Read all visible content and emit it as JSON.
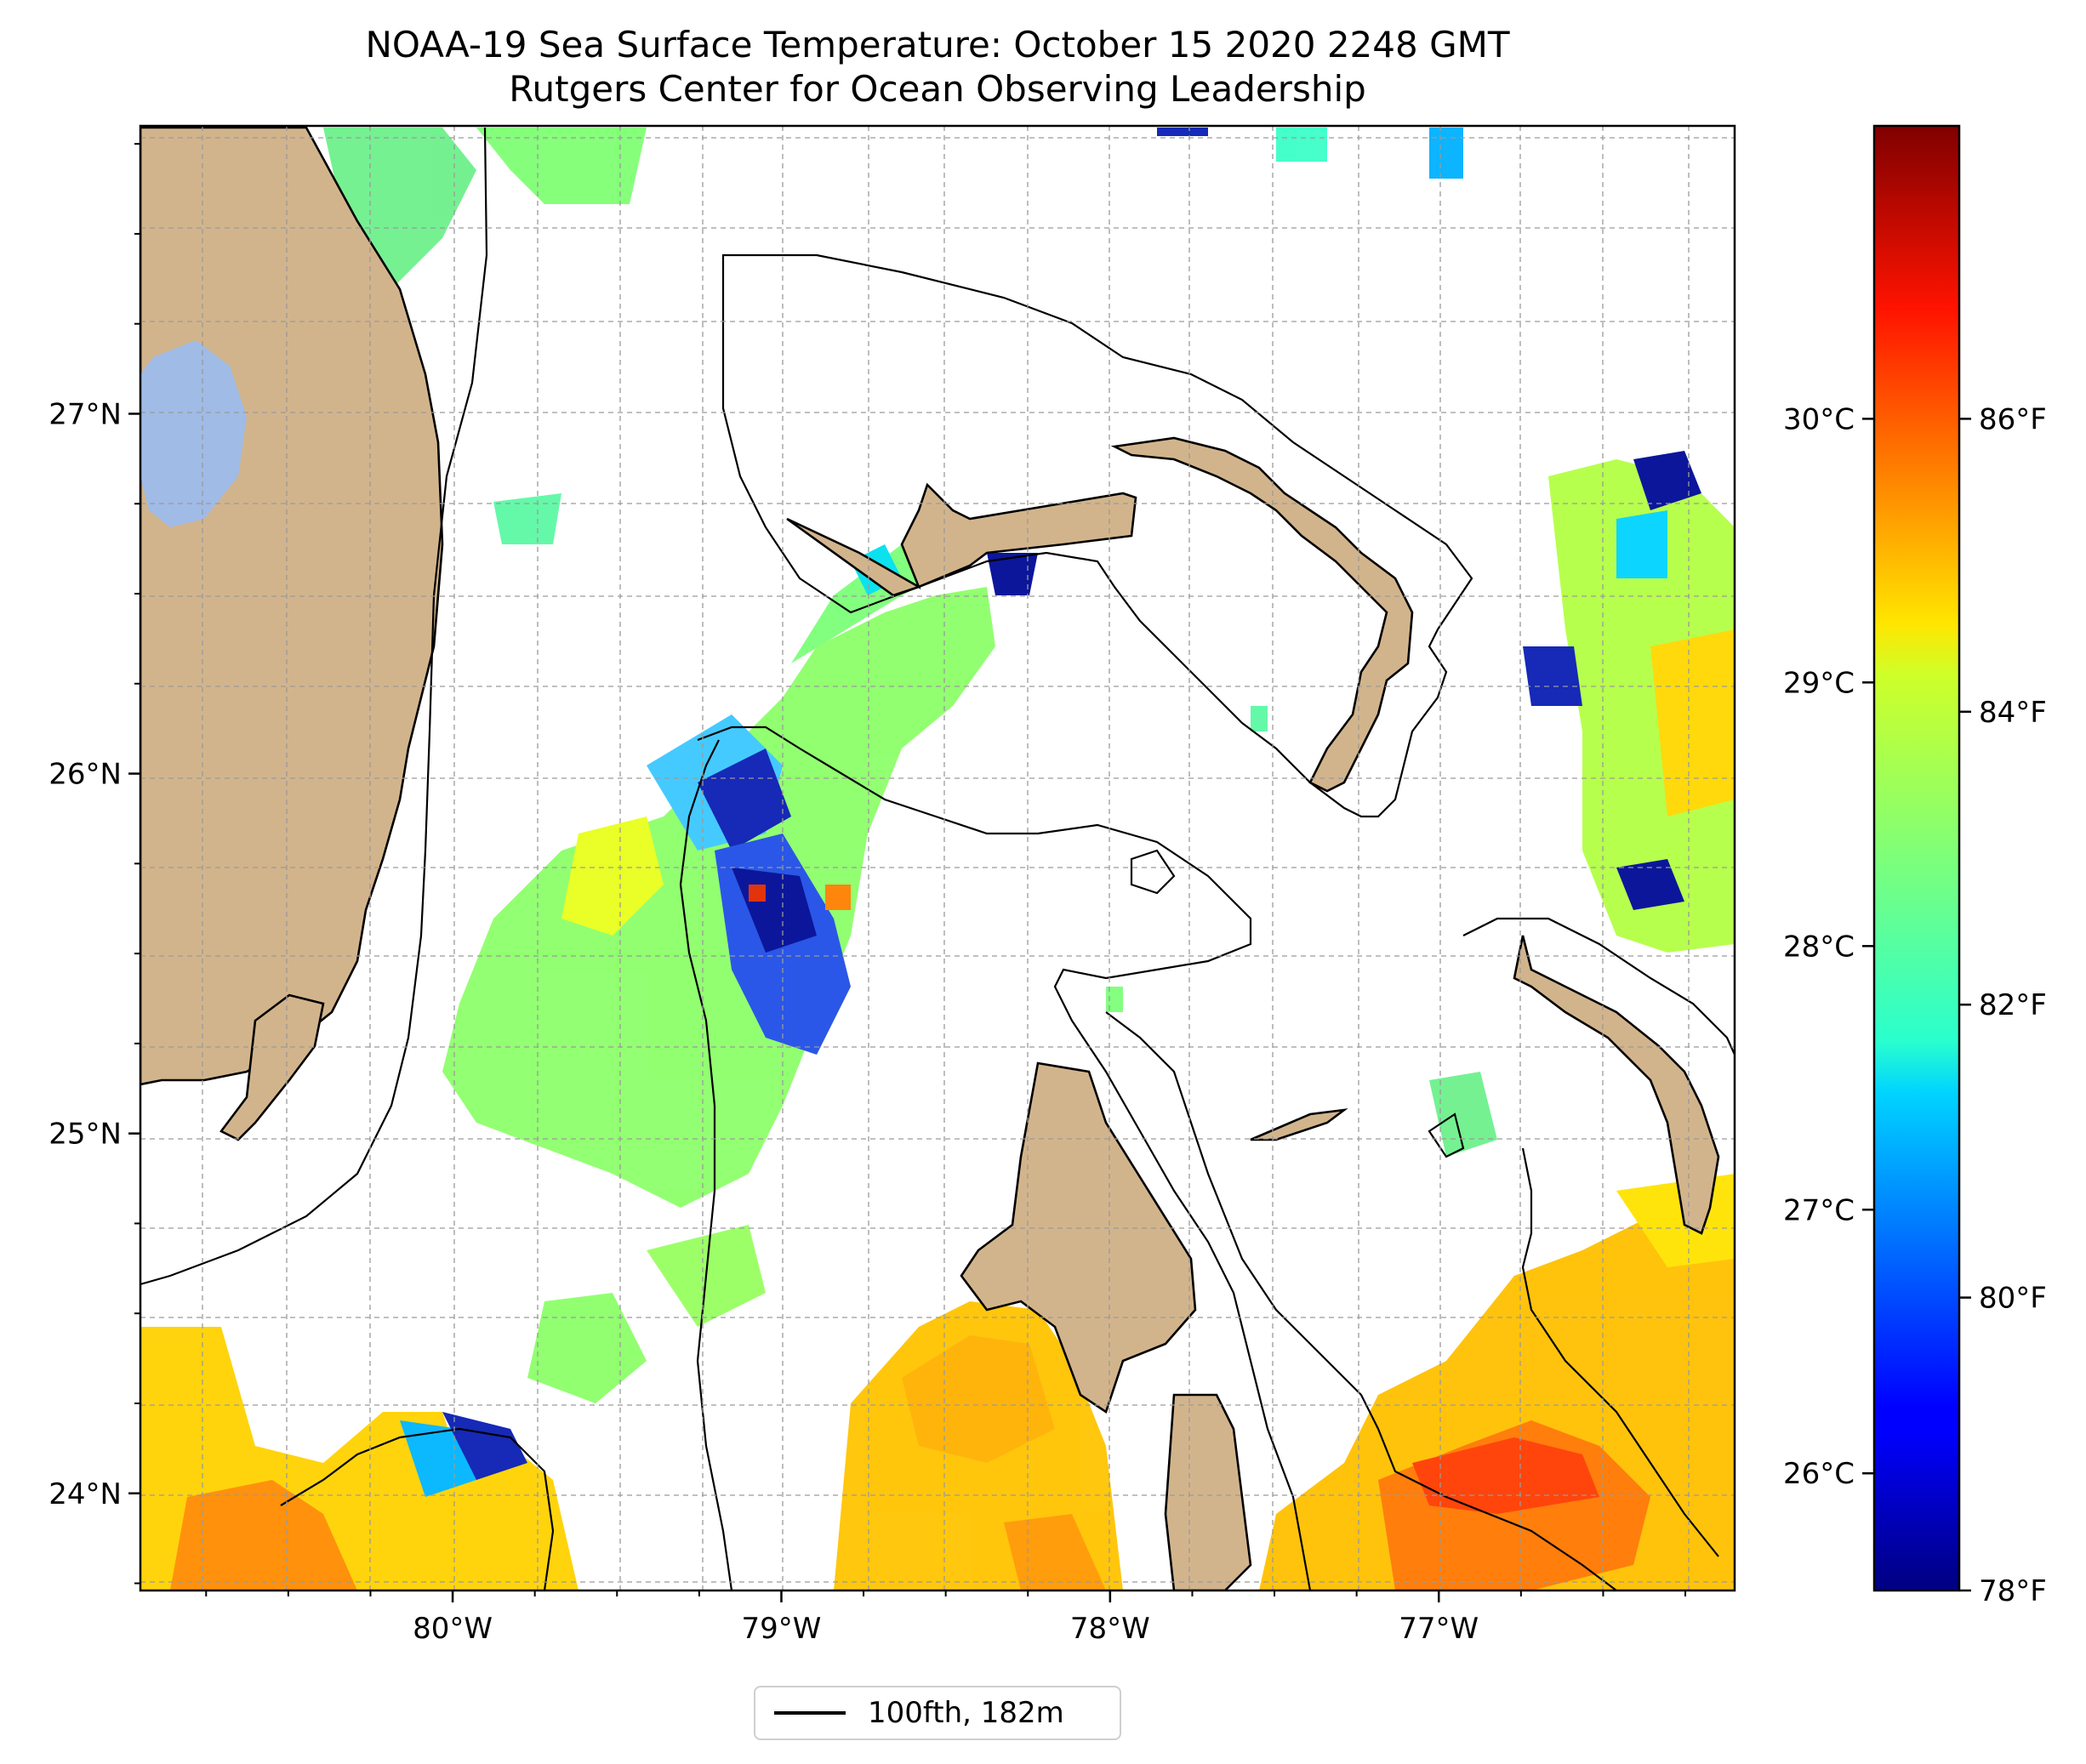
{
  "title": "NOAA-19 Sea Surface Temperature: October 15 2020 2248 GMT",
  "subtitle": "Rutgers Center for Ocean Observing Leadership",
  "map": {
    "lon_range": [
      -80.95,
      -76.1
    ],
    "lat_range": [
      23.73,
      27.8
    ],
    "lon_ticks": [
      {
        "value": -80,
        "label": "80°W"
      },
      {
        "value": -79,
        "label": "79°W"
      },
      {
        "value": -78,
        "label": "78°W"
      },
      {
        "value": -77,
        "label": "77°W"
      }
    ],
    "lat_ticks": [
      {
        "value": 24,
        "label": "24°N"
      },
      {
        "value": 25,
        "label": "25°N"
      },
      {
        "value": 26,
        "label": "26°N"
      },
      {
        "value": 27,
        "label": "27°N"
      }
    ],
    "gridlines": true,
    "land_color": "#d2b48c",
    "lake_color": "#9fbbe6",
    "isobath_color": "#000000"
  },
  "colorbar": {
    "colormap": "jet",
    "range_f": [
      78,
      88
    ],
    "celsius_ticks": [
      {
        "value_f": 78.8,
        "label": "26°C"
      },
      {
        "value_f": 80.6,
        "label": "27°C"
      },
      {
        "value_f": 82.4,
        "label": "28°C"
      },
      {
        "value_f": 84.2,
        "label": "29°C"
      },
      {
        "value_f": 86.0,
        "label": "30°C"
      }
    ],
    "fahrenheit_ticks": [
      {
        "value_f": 78,
        "label": "78°F"
      },
      {
        "value_f": 80,
        "label": "80°F"
      },
      {
        "value_f": 82,
        "label": "82°F"
      },
      {
        "value_f": 84,
        "label": "84°F"
      },
      {
        "value_f": 86,
        "label": "86°F"
      }
    ]
  },
  "legend": {
    "label": "100fth, 182m"
  }
}
